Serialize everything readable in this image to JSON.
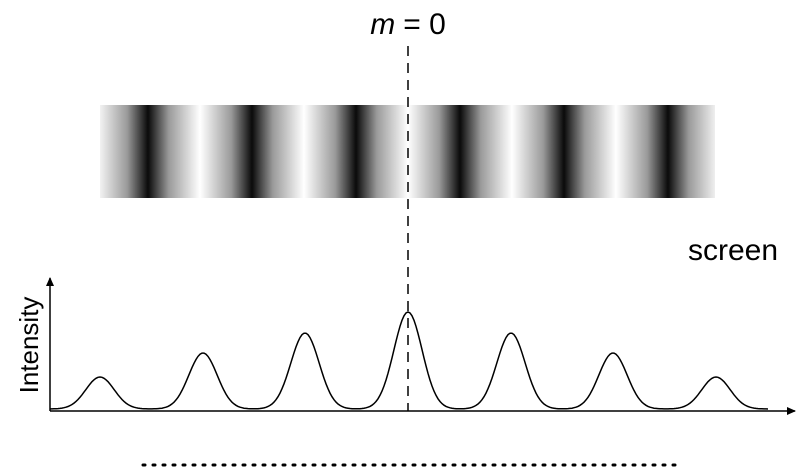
{
  "order_label": {
    "variable": "m",
    "equals": "= 0"
  },
  "screen_label": "screen",
  "axis_label": "Intensity"
}
